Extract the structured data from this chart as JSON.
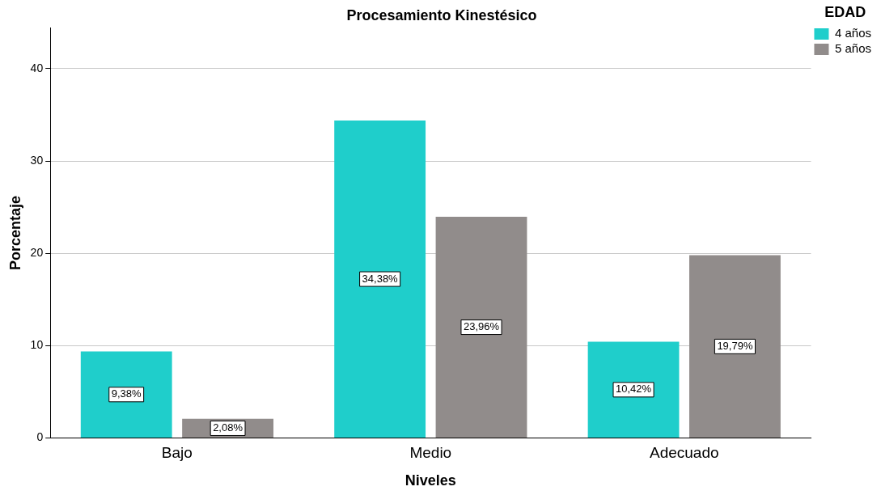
{
  "chart_data": {
    "type": "bar",
    "title": "Procesamiento Kinestésico",
    "xlabel": "Niveles",
    "ylabel": "Porcentaje",
    "legend_title": "EDAD",
    "categories": [
      "Bajo",
      "Medio",
      "Adecuado"
    ],
    "series": [
      {
        "name": "4 años",
        "color": "#1fcecb",
        "values": [
          9.38,
          34.38,
          10.42
        ],
        "value_labels": [
          "9,38%",
          "34,38%",
          "10,42%"
        ]
      },
      {
        "name": "5 años",
        "color": "#918c8b",
        "values": [
          2.08,
          23.96,
          19.79
        ],
        "value_labels": [
          "2,08%",
          "23,96%",
          "19,79%"
        ]
      }
    ],
    "ylim": [
      0,
      44.4
    ],
    "yticks": [
      0,
      10,
      20,
      30,
      40
    ],
    "grid": "y",
    "legend": "top right"
  }
}
